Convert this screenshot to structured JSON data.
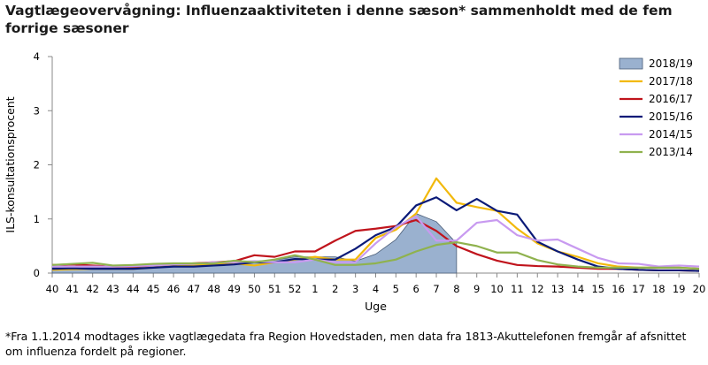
{
  "title": "Vagtlægeovervågning: Influenzaaktiviteten i denne sæson* sammenholdt med de fem forrige sæsoner",
  "footnote": "*Fra 1.1.2014 modtages ikke vagtlægedata fra Region Hovedstaden, men data fra 1813-Akuttelefonen fremgår af afsnittet om influenza fordelt på regioner.",
  "chart_data": {
    "type": "line",
    "xlabel": "Uge",
    "ylabel": "ILS-konsultationsprocent",
    "ylim": [
      0,
      4
    ],
    "yticks": [
      0,
      1,
      2,
      3,
      4
    ],
    "grid": false,
    "legend_position": "top-right",
    "categories": [
      "40",
      "41",
      "42",
      "43",
      "44",
      "45",
      "46",
      "47",
      "48",
      "49",
      "50",
      "51",
      "52",
      "1",
      "2",
      "3",
      "4",
      "5",
      "6",
      "7",
      "8",
      "9",
      "10",
      "11",
      "12",
      "13",
      "14",
      "15",
      "16",
      "17",
      "18",
      "19",
      "20"
    ],
    "series": [
      {
        "name": "2018/19",
        "style": "area",
        "color": "#9ab1cf",
        "stroke": "#4a5d78",
        "values": [
          0.1,
          0.12,
          0.1,
          0.1,
          0.12,
          0.13,
          0.15,
          0.15,
          0.16,
          0.18,
          0.22,
          0.24,
          0.3,
          0.3,
          0.3,
          0.22,
          0.35,
          0.62,
          1.1,
          0.95,
          0.55,
          null,
          null,
          null,
          null,
          null,
          null,
          null,
          null,
          null,
          null,
          null,
          null
        ]
      },
      {
        "name": "2017/18",
        "color": "#f2b90c",
        "values": [
          0.06,
          0.07,
          0.08,
          0.08,
          0.08,
          0.1,
          0.13,
          0.15,
          0.17,
          0.18,
          0.14,
          0.2,
          0.25,
          0.3,
          0.25,
          0.25,
          0.65,
          0.8,
          1.1,
          1.75,
          1.3,
          1.22,
          1.15,
          0.82,
          0.55,
          0.4,
          0.3,
          0.18,
          0.12,
          0.1,
          0.1,
          0.1,
          0.08
        ]
      },
      {
        "name": "2016/17",
        "color": "#c0141c",
        "values": [
          0.15,
          0.16,
          0.14,
          0.12,
          0.12,
          0.14,
          0.16,
          0.18,
          0.2,
          0.22,
          0.33,
          0.3,
          0.4,
          0.4,
          0.6,
          0.78,
          0.82,
          0.87,
          0.98,
          0.78,
          0.5,
          0.35,
          0.23,
          0.15,
          0.13,
          0.12,
          0.1,
          0.08,
          0.08,
          0.06,
          0.05,
          0.05,
          0.04
        ]
      },
      {
        "name": "2015/16",
        "color": "#0a1a78",
        "values": [
          0.08,
          0.09,
          0.08,
          0.08,
          0.08,
          0.1,
          0.12,
          0.12,
          0.14,
          0.16,
          0.2,
          0.2,
          0.26,
          0.25,
          0.25,
          0.45,
          0.7,
          0.85,
          1.25,
          1.4,
          1.16,
          1.37,
          1.15,
          1.08,
          0.58,
          0.4,
          0.25,
          0.12,
          0.08,
          0.06,
          0.05,
          0.05,
          0.04
        ]
      },
      {
        "name": "2014/15",
        "color": "#c89af0",
        "values": [
          0.12,
          0.12,
          0.12,
          0.12,
          0.13,
          0.14,
          0.16,
          0.17,
          0.2,
          0.2,
          0.22,
          0.2,
          0.2,
          0.25,
          0.2,
          0.2,
          0.55,
          0.85,
          1.05,
          0.6,
          0.6,
          0.93,
          0.98,
          0.7,
          0.6,
          0.62,
          0.45,
          0.28,
          0.18,
          0.17,
          0.12,
          0.14,
          0.12
        ]
      },
      {
        "name": "2013/14",
        "color": "#8fb24e",
        "values": [
          0.15,
          0.17,
          0.19,
          0.14,
          0.15,
          0.17,
          0.18,
          0.18,
          0.18,
          0.23,
          0.2,
          0.25,
          0.33,
          0.25,
          0.15,
          0.15,
          0.18,
          0.25,
          0.4,
          0.52,
          0.57,
          0.5,
          0.38,
          0.38,
          0.24,
          0.16,
          0.12,
          0.1,
          0.1,
          0.1,
          0.1,
          0.1,
          0.08
        ]
      }
    ]
  }
}
